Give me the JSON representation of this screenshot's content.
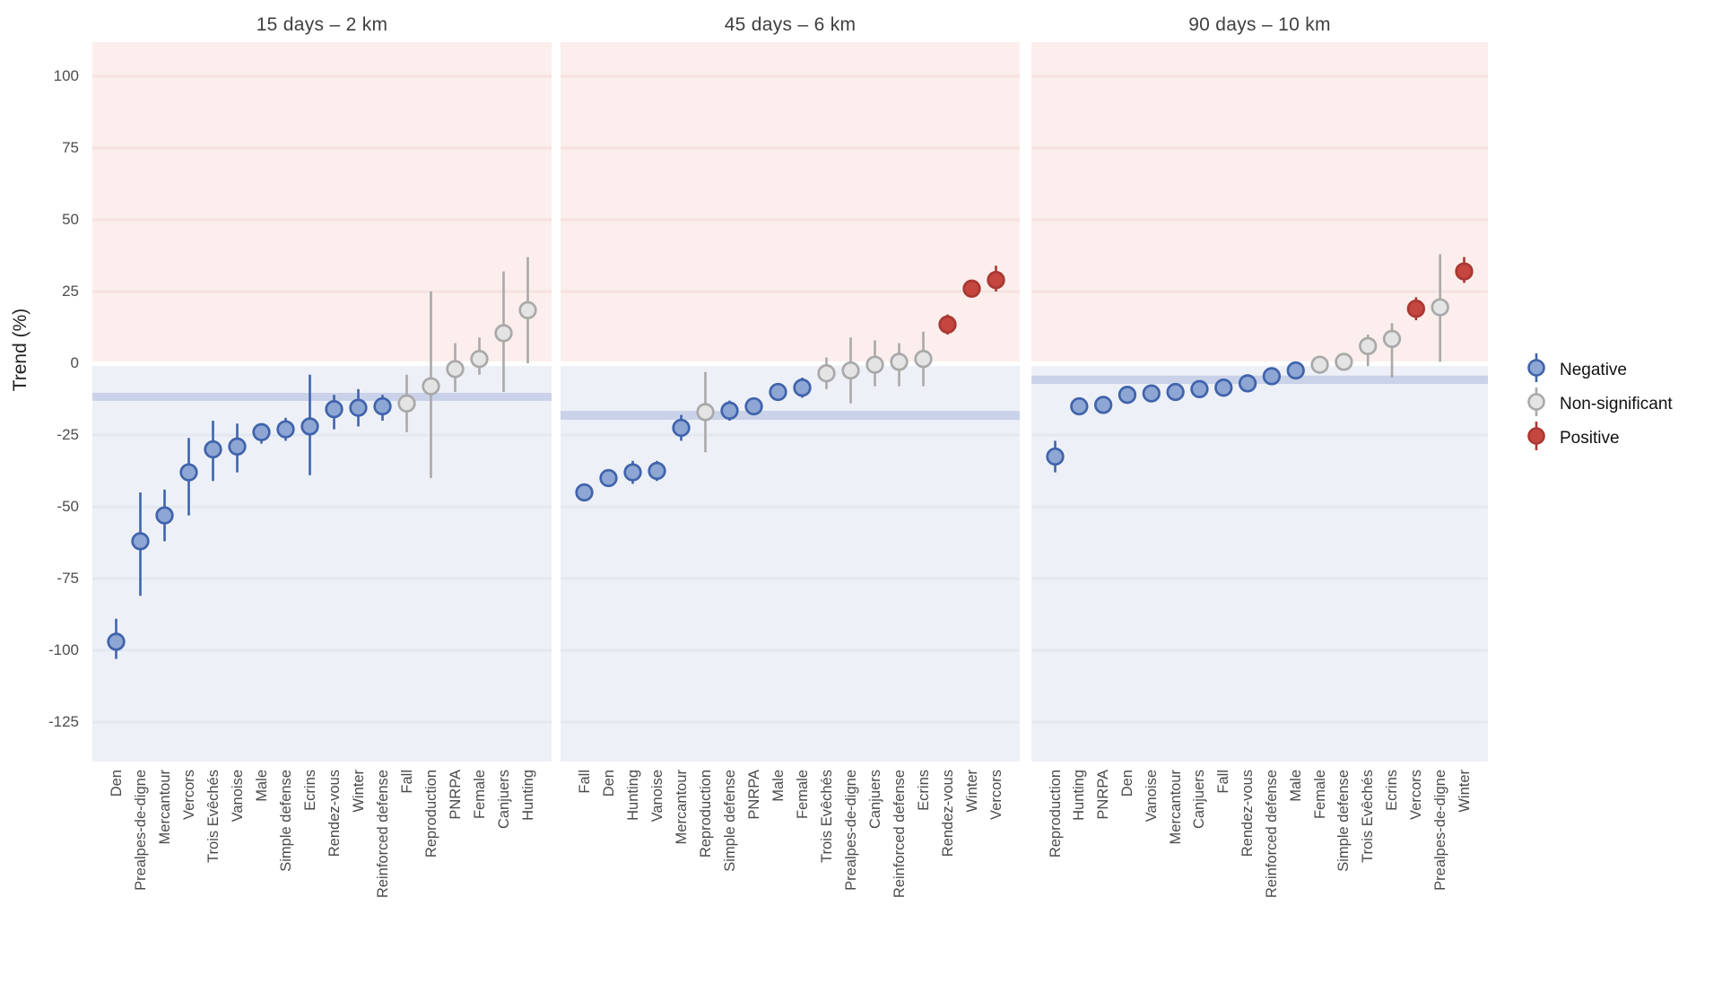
{
  "chart_data": {
    "type": "scatter",
    "title": "",
    "ylabel": "Trend (%)",
    "ylim": [
      -139,
      112
    ],
    "yticks": [
      100,
      75,
      50,
      25,
      0,
      -25,
      -50,
      -75,
      -100,
      -125
    ],
    "grid": true,
    "legend_position": "right",
    "legend": [
      {
        "label": "Negative",
        "key": "negative"
      },
      {
        "label": "Non-significant",
        "key": "non-significant"
      },
      {
        "label": "Positive",
        "key": "positive"
      }
    ],
    "colors": {
      "negative": {
        "fill": "#8ea6d3",
        "stroke": "#3f63ac"
      },
      "non-significant": {
        "fill": "#e4e4e4",
        "stroke": "#a9a9a9"
      },
      "positive": {
        "fill": "#c5463f",
        "stroke": "#a93832"
      }
    },
    "background": {
      "region_positive_bg": "#fbeeec",
      "region_negative_bg": "#edf0f6",
      "grid_positive": "#f5e2df",
      "grid_negative": "#e4e8f0",
      "reference_band": "#c9d2e8"
    },
    "panels": [
      {
        "title": "15 days – 2 km",
        "reference_band": [
          -13.1,
          -10.3
        ],
        "points": [
          {
            "label": "Den",
            "value": -97,
            "ci": [
              -103,
              -89
            ],
            "significance": "negative"
          },
          {
            "label": "Prealpes-de-digne",
            "value": -62,
            "ci": [
              -81,
              -45
            ],
            "significance": "negative"
          },
          {
            "label": "Mercantour",
            "value": -53,
            "ci": [
              -62,
              -44
            ],
            "significance": "negative"
          },
          {
            "label": "Vercors",
            "value": -38,
            "ci": [
              -53,
              -26
            ],
            "significance": "negative"
          },
          {
            "label": "Trois Evêchés",
            "value": -30,
            "ci": [
              -41,
              -20
            ],
            "significance": "negative"
          },
          {
            "label": "Vanoise",
            "value": -29,
            "ci": [
              -38,
              -21
            ],
            "significance": "negative"
          },
          {
            "label": "Male",
            "value": -24,
            "ci": [
              -28,
              -21
            ],
            "significance": "negative"
          },
          {
            "label": "Simple defense",
            "value": -23,
            "ci": [
              -27,
              -19
            ],
            "significance": "negative"
          },
          {
            "label": "Ecrins",
            "value": -22,
            "ci": [
              -39,
              -4
            ],
            "significance": "negative"
          },
          {
            "label": "Rendez-vous",
            "value": -16,
            "ci": [
              -23,
              -11
            ],
            "significance": "negative"
          },
          {
            "label": "Winter",
            "value": -15.5,
            "ci": [
              -22,
              -9
            ],
            "significance": "negative"
          },
          {
            "label": "Reinforced defense",
            "value": -15,
            "ci": [
              -20,
              -11
            ],
            "significance": "negative"
          },
          {
            "label": "Fall",
            "value": -14,
            "ci": [
              -24,
              -4
            ],
            "significance": "non-significant"
          },
          {
            "label": "Reproduction",
            "value": -8,
            "ci": [
              -40,
              25
            ],
            "significance": "non-significant"
          },
          {
            "label": "PNRPA",
            "value": -2,
            "ci": [
              -10,
              7
            ],
            "significance": "non-significant"
          },
          {
            "label": "Female",
            "value": 1.5,
            "ci": [
              -4,
              9
            ],
            "significance": "non-significant"
          },
          {
            "label": "Canjuers",
            "value": 10.5,
            "ci": [
              -10,
              32
            ],
            "significance": "non-significant"
          },
          {
            "label": "Hunting",
            "value": 18.5,
            "ci": [
              0,
              37
            ],
            "significance": "non-significant"
          }
        ]
      },
      {
        "title": "45 days – 6 km",
        "reference_band": [
          -19.7,
          -16.6
        ],
        "points": [
          {
            "label": "Fall",
            "value": -45,
            "ci": [
              -48,
              -42
            ],
            "significance": "negative"
          },
          {
            "label": "Den",
            "value": -40,
            "ci": [
              -43,
              -37
            ],
            "significance": "negative"
          },
          {
            "label": "Hunting",
            "value": -38,
            "ci": [
              -42,
              -34
            ],
            "significance": "negative"
          },
          {
            "label": "Vanoise",
            "value": -37.5,
            "ci": [
              -41,
              -34
            ],
            "significance": "negative"
          },
          {
            "label": "Mercantour",
            "value": -22.5,
            "ci": [
              -27,
              -18
            ],
            "significance": "negative"
          },
          {
            "label": "Reproduction",
            "value": -17,
            "ci": [
              -31,
              -3
            ],
            "significance": "non-significant"
          },
          {
            "label": "Simple defense",
            "value": -16.5,
            "ci": [
              -20,
              -13
            ],
            "significance": "negative"
          },
          {
            "label": "PNRPA",
            "value": -15,
            "ci": [
              -18,
              -12
            ],
            "significance": "negative"
          },
          {
            "label": "Male",
            "value": -10,
            "ci": [
              -13,
              -7
            ],
            "significance": "negative"
          },
          {
            "label": "Female",
            "value": -8.5,
            "ci": [
              -12,
              -5
            ],
            "significance": "negative"
          },
          {
            "label": "Trois Evêchés",
            "value": -3.5,
            "ci": [
              -9,
              2
            ],
            "significance": "non-significant"
          },
          {
            "label": "Prealpes-de-digne",
            "value": -2.5,
            "ci": [
              -14,
              9
            ],
            "significance": "non-significant"
          },
          {
            "label": "Canjuers",
            "value": -0.5,
            "ci": [
              -8,
              8
            ],
            "significance": "non-significant"
          },
          {
            "label": "Reinforced defense",
            "value": 0.5,
            "ci": [
              -8,
              7
            ],
            "significance": "non-significant"
          },
          {
            "label": "Ecrins",
            "value": 1.5,
            "ci": [
              -8,
              11
            ],
            "significance": "non-significant"
          },
          {
            "label": "Rendez-vous",
            "value": 13.5,
            "ci": [
              10,
              17
            ],
            "significance": "positive"
          },
          {
            "label": "Winter",
            "value": 26,
            "ci": [
              23,
              29
            ],
            "significance": "positive"
          },
          {
            "label": "Vercors",
            "value": 29,
            "ci": [
              25,
              34
            ],
            "significance": "positive"
          }
        ]
      },
      {
        "title": "90 days – 10 km",
        "reference_band": [
          -7.2,
          -4.3
        ],
        "points": [
          {
            "label": "Reproduction",
            "value": -32.5,
            "ci": [
              -38,
              -27
            ],
            "significance": "negative"
          },
          {
            "label": "Hunting",
            "value": -15,
            "ci": [
              -17.5,
              -13
            ],
            "significance": "negative"
          },
          {
            "label": "PNRPA",
            "value": -14.5,
            "ci": [
              -17,
              -12
            ],
            "significance": "negative"
          },
          {
            "label": "Den",
            "value": -11,
            "ci": [
              -13,
              -9
            ],
            "significance": "negative"
          },
          {
            "label": "Vanoise",
            "value": -10.5,
            "ci": [
              -13,
              -8
            ],
            "significance": "negative"
          },
          {
            "label": "Mercantour",
            "value": -10,
            "ci": [
              -12,
              -8
            ],
            "significance": "negative"
          },
          {
            "label": "Canjuers",
            "value": -9,
            "ci": [
              -12,
              -6
            ],
            "significance": "negative"
          },
          {
            "label": "Fall",
            "value": -8.5,
            "ci": [
              -10.5,
              -6.5
            ],
            "significance": "negative"
          },
          {
            "label": "Rendez-vous",
            "value": -7,
            "ci": [
              -9,
              -5
            ],
            "significance": "negative"
          },
          {
            "label": "Reinforced defense",
            "value": -4.5,
            "ci": [
              -6.5,
              -2.5
            ],
            "significance": "negative"
          },
          {
            "label": "Male",
            "value": -2.5,
            "ci": [
              -4,
              -1
            ],
            "significance": "negative"
          },
          {
            "label": "Female",
            "value": -0.5,
            "ci": [
              -3,
              2
            ],
            "significance": "non-significant"
          },
          {
            "label": "Simple defense",
            "value": 0.5,
            "ci": [
              -2,
              3
            ],
            "significance": "non-significant"
          },
          {
            "label": "Trois Evêchés",
            "value": 6,
            "ci": [
              -1,
              10
            ],
            "significance": "non-significant"
          },
          {
            "label": "Ecrins",
            "value": 8.5,
            "ci": [
              -5,
              14
            ],
            "significance": "non-significant"
          },
          {
            "label": "Vercors",
            "value": 19,
            "ci": [
              15,
              23
            ],
            "significance": "positive"
          },
          {
            "label": "Prealpes-de-digne",
            "value": 19.5,
            "ci": [
              0.5,
              38
            ],
            "significance": "non-significant"
          },
          {
            "label": "Winter",
            "value": 32,
            "ci": [
              28,
              37
            ],
            "significance": "positive"
          }
        ]
      }
    ]
  }
}
